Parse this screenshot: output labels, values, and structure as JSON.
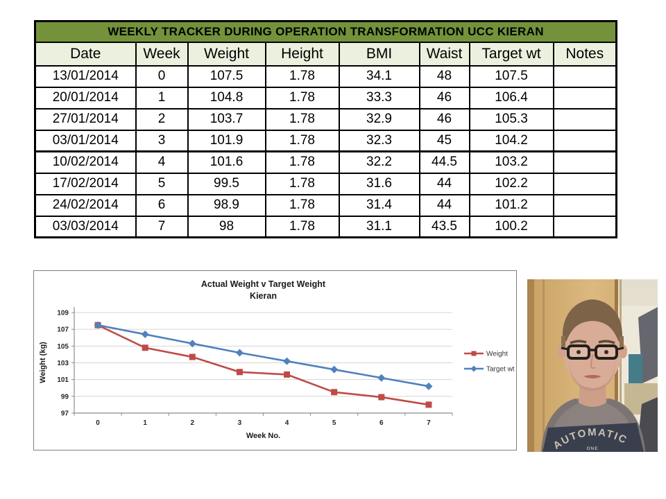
{
  "tracker_table": {
    "title": "WEEKLY TRACKER DURING OPERATION TRANSFORMATION UCC KIERAN",
    "title_bg": "#73923B",
    "header_bg": "#EBF1DE",
    "columns": [
      "Date",
      "Week",
      "Weight",
      "Height",
      "BMI",
      "Waist",
      "Target wt",
      "Notes"
    ],
    "rows": [
      [
        "13/01/2014",
        "0",
        "107.5",
        "1.78",
        "34.1",
        "48",
        "107.5",
        ""
      ],
      [
        "20/01/2014",
        "1",
        "104.8",
        "1.78",
        "33.3",
        "46",
        "106.4",
        ""
      ],
      [
        "27/01/2014",
        "2",
        "103.7",
        "1.78",
        "32.9",
        "46",
        "105.3",
        ""
      ],
      [
        "03/01/2014",
        "3",
        "101.9",
        "1.78",
        "32.3",
        "45",
        "104.2",
        ""
      ],
      [
        "10/02/2014",
        "4",
        "101.6",
        "1.78",
        "32.2",
        "44.5",
        "103.2",
        ""
      ],
      [
        "17/02/2014",
        "5",
        "99.5",
        "1.78",
        "31.6",
        "44",
        "102.2",
        ""
      ],
      [
        "24/02/2014",
        "6",
        "98.9",
        "1.78",
        "31.4",
        "44",
        "101.2",
        ""
      ],
      [
        "03/03/2014",
        "7",
        "98",
        "1.78",
        "31.1",
        "43.5",
        "100.2",
        ""
      ]
    ]
  },
  "chart": {
    "title_line1": "Actual Weight v Target Weight",
    "title_line2": "Kieran"
  },
  "chart_data": {
    "type": "line",
    "title": "Actual Weight v Target Weight Kieran",
    "categories": [
      "0",
      "1",
      "2",
      "3",
      "4",
      "5",
      "6",
      "7"
    ],
    "series": [
      {
        "name": "Weight",
        "color": "#BE4B48",
        "marker": "square",
        "values": [
          107.5,
          104.8,
          103.7,
          101.9,
          101.6,
          99.5,
          98.9,
          98
        ]
      },
      {
        "name": "Target wt",
        "color": "#4F81BD",
        "marker": "diamond",
        "values": [
          107.5,
          106.4,
          105.3,
          104.2,
          103.2,
          102.2,
          101.2,
          100.2
        ]
      }
    ],
    "xlabel": "Week No.",
    "ylabel": "Weight (kg)",
    "ylim": [
      97,
      109
    ],
    "ytick_step": 2,
    "grid": true,
    "legend_position": "right",
    "grid_color": "#D6D6D6",
    "axis_color": "#8C8C8C"
  },
  "photo": {
    "shirt_arc_text": "AUTOMATIC",
    "shirt_small_text": "ONE"
  }
}
